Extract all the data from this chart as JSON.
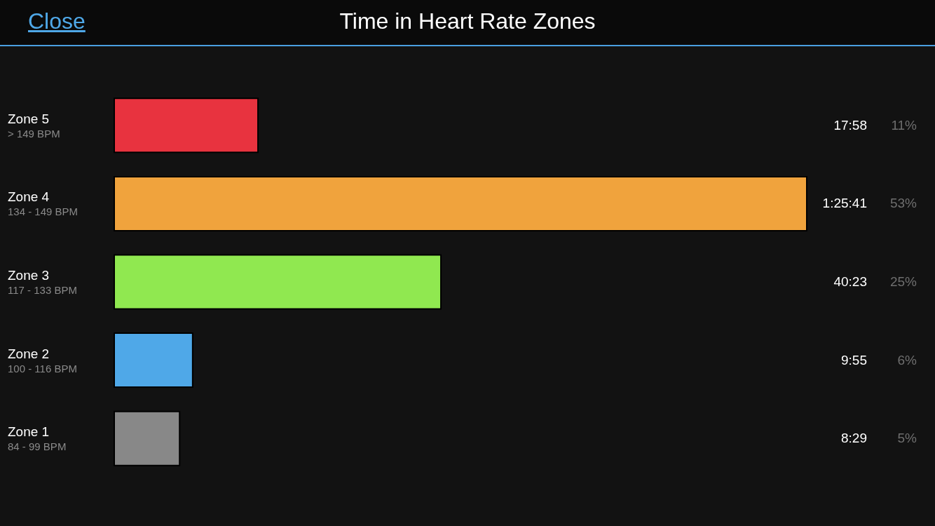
{
  "chart_data": {
    "type": "bar",
    "orientation": "horizontal",
    "title": "Time in Heart Rate Zones",
    "categories": [
      "Zone 5\n> 149 BPM",
      "Zone 4\n134 - 149 BPM",
      "Zone 3\n117 - 133 BPM",
      "Zone 2\n100 - 116 BPM",
      "Zone 1\n84 - 99 BPM"
    ],
    "values": [
      11,
      53,
      25,
      6,
      5
    ],
    "colors": [
      "#e8333f",
      "#f0a33d",
      "#90e850",
      "#4fa8e8",
      "#888888"
    ],
    "value_labels": [
      "11%",
      "53%",
      "25%",
      "6%",
      "5%"
    ],
    "annotations": [
      "Close",
      "17:58",
      "1:25:41",
      "40:23",
      "9:55",
      "8:29"
    ]
  }
}
